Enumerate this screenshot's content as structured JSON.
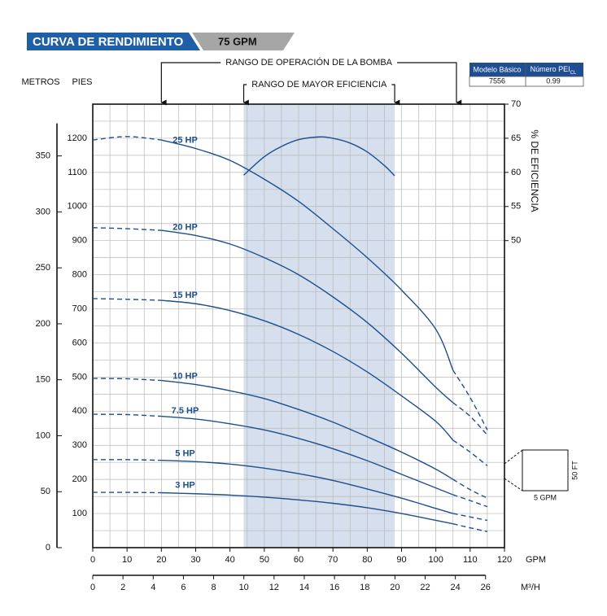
{
  "header": {
    "title": "CURVA DE RENDIMIENTO",
    "tab": "75 GPM"
  },
  "table": {
    "headers": [
      "Modelo Básico",
      "Número PEI"
    ],
    "header_sub": "CL",
    "rows": [
      [
        "7556",
        "0.99"
      ]
    ]
  },
  "chart_data": {
    "type": "line",
    "x": [
      0,
      10,
      20,
      30,
      40,
      50,
      60,
      70,
      80,
      90,
      100,
      105,
      110,
      115
    ],
    "dashed_before": 20,
    "dashed_after": 105,
    "series": [
      {
        "name": "25 HP",
        "color": "#1d4f8c",
        "values": [
          1195,
          1205,
          1195,
          1170,
          1135,
          1080,
          1015,
          935,
          850,
          755,
          640,
          520,
          440,
          345
        ]
      },
      {
        "name": "20 HP",
        "color": "#1d4f8c",
        "values": [
          938,
          935,
          930,
          915,
          890,
          850,
          800,
          735,
          660,
          570,
          470,
          425,
          385,
          330
        ]
      },
      {
        "name": "15 HP",
        "color": "#1d4f8c",
        "values": [
          730,
          728,
          725,
          715,
          695,
          665,
          625,
          575,
          515,
          445,
          370,
          315,
          280,
          240
        ]
      },
      {
        "name": "10 HP",
        "color": "#1d4f8c",
        "values": [
          496,
          495,
          490,
          478,
          460,
          437,
          405,
          368,
          325,
          280,
          230,
          200,
          170,
          145
        ]
      },
      {
        "name": "7.5 HP",
        "color": "#1d4f8c",
        "values": [
          391,
          390,
          385,
          377,
          363,
          345,
          320,
          290,
          255,
          215,
          175,
          155,
          138,
          120
        ]
      },
      {
        "name": "5 HP",
        "color": "#1d4f8c",
        "values": [
          258,
          258,
          256,
          252,
          245,
          233,
          217,
          197,
          172,
          145,
          115,
          100,
          90,
          80
        ]
      },
      {
        "name": "3 HP",
        "color": "#1d4f8c",
        "values": [
          162,
          162,
          161,
          158,
          154,
          148,
          140,
          130,
          117,
          100,
          80,
          70,
          58,
          47
        ]
      }
    ],
    "efficiency_curve": {
      "axis": "y2",
      "color": "#1d4f8c",
      "x": [
        44,
        50,
        55,
        60,
        66,
        70,
        75,
        80,
        85,
        88
      ],
      "values": [
        59.6,
        62.3,
        63.8,
        64.8,
        65.2,
        65.0,
        64.3,
        63.0,
        61.0,
        59.5
      ]
    },
    "ranges": [
      {
        "label": "RANGO DE OPERACIÓN DE LA BOMBA",
        "from": 20,
        "to": 106
      },
      {
        "label": "RANGO DE MAYOR EFICIENCIA",
        "from": 44,
        "to": 88,
        "shaded": true
      }
    ],
    "xlabel": "GPM",
    "xlim": [
      0,
      120
    ],
    "xticks": [
      0,
      10,
      20,
      30,
      40,
      50,
      60,
      70,
      80,
      90,
      100,
      110,
      120
    ],
    "x2label": "M³/H",
    "x2lim": [
      0,
      27.25
    ],
    "x2ticks": [
      0,
      2,
      4,
      6,
      8,
      10,
      12,
      14,
      16,
      18,
      20,
      22,
      24,
      26
    ],
    "ylabel": "PIES",
    "ylim": [
      0,
      1300
    ],
    "yticks": [
      100,
      200,
      300,
      400,
      500,
      600,
      700,
      800,
      900,
      1000,
      1100,
      1200
    ],
    "y_metros": {
      "label": "METROS",
      "lim": [
        0,
        396.24
      ],
      "ticks": [
        0,
        50,
        100,
        150,
        200,
        250,
        300,
        350
      ]
    },
    "y2label": "% DE EFICIENCIA",
    "y2lim": [
      5,
      70
    ],
    "y2ticks": [
      50,
      55,
      60,
      65,
      70
    ],
    "x_grid": [
      0,
      5,
      10,
      15,
      20,
      25,
      30,
      35,
      40,
      45,
      50,
      55,
      60,
      65,
      70,
      75,
      80,
      85,
      90,
      95,
      100,
      105,
      110,
      115,
      120
    ],
    "y_grid": [
      0,
      50,
      100,
      150,
      200,
      250,
      300,
      350,
      400,
      450,
      500,
      550,
      600,
      650,
      700,
      750,
      800,
      850,
      900,
      950,
      1000,
      1050,
      1100,
      1150,
      1200,
      1250,
      1300
    ],
    "scale_box": {
      "x_label": "5 GPM",
      "y_label": "50 FT"
    }
  }
}
